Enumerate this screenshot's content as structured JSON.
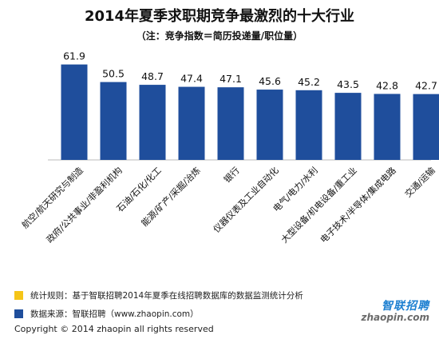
{
  "chart_data": {
    "type": "bar",
    "title": "2014年夏季求职期竞争最激烈的十大行业",
    "subtitle": "（注：竞争指数＝简历投递量/职位量）",
    "categories": [
      "航空/航天研究与制造",
      "政府/公共事业/非盈利机构",
      "石油/石化/化工",
      "能源/矿产/采掘/冶炼",
      "银行",
      "仪器仪表及工业自动化",
      "电气/电力/水利",
      "大型设备/机电设备/重工业",
      "电子技术/半导体/集成电路",
      "交通/运输"
    ],
    "values": [
      61.9,
      50.5,
      48.7,
      47.4,
      47.1,
      45.6,
      45.2,
      43.5,
      42.8,
      42.7
    ],
    "ylim": [
      0,
      70
    ],
    "grid": false,
    "bar_color": "#1f4e9c"
  },
  "legend": {
    "rule_text": "统计规则：基于智联招聘2014年夏季在线招聘数据库的数据监测统计分析",
    "rule_color": "#f5c518",
    "source_text": "数据来源：智联招聘（www.zhaopin.com）",
    "source_color": "#1f4e9c"
  },
  "footer": {
    "copyright": "Copyright  ©  2014 zhaopin all rights reserved"
  },
  "logo": {
    "cn": "智联招聘",
    "en": "zhaopin.com"
  }
}
